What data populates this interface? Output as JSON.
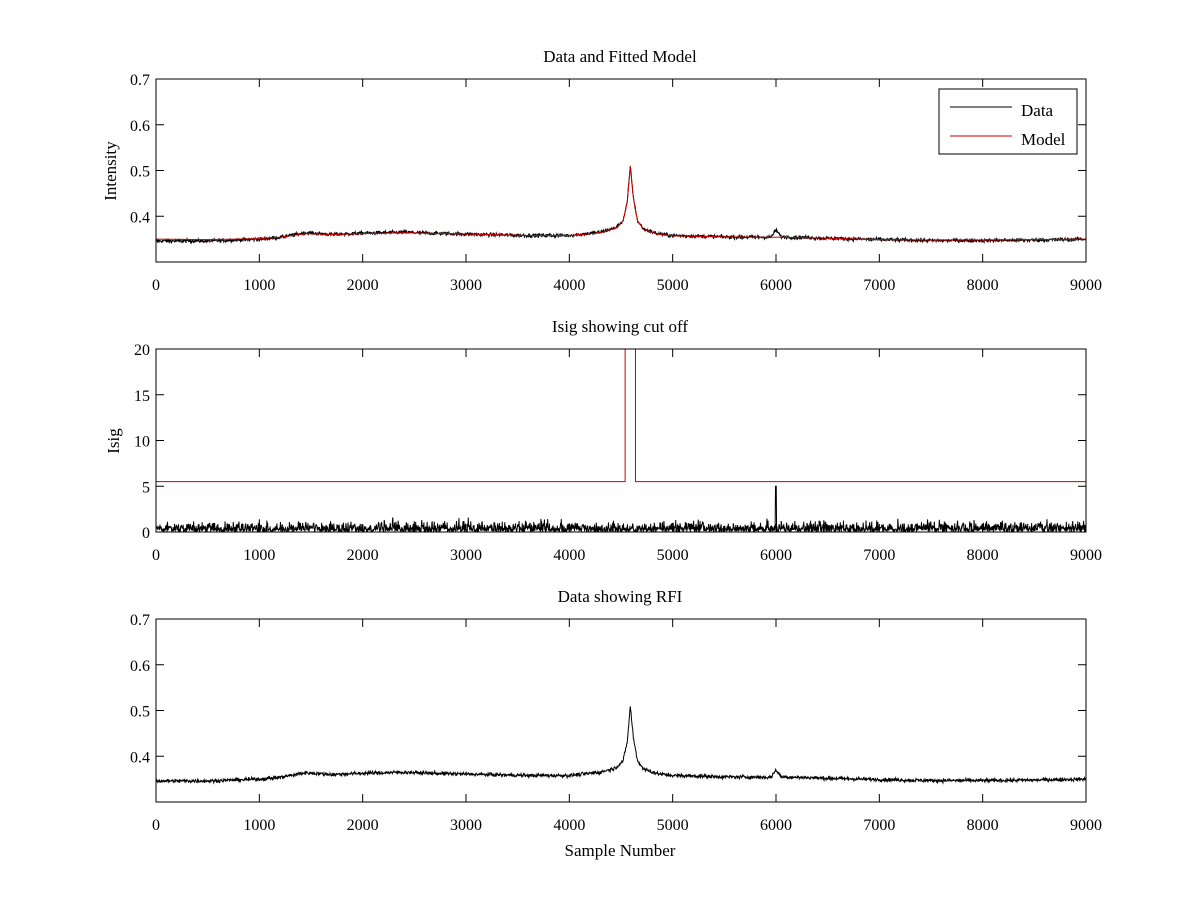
{
  "figure": {
    "background": "#ffffff"
  },
  "chart_data": [
    {
      "type": "line",
      "title": "Data and Fitted Model",
      "xlabel": "",
      "ylabel": "Intensity",
      "xlim": [
        0,
        9000
      ],
      "ylim": [
        0.3,
        0.7
      ],
      "xticks": [
        0,
        1000,
        2000,
        3000,
        4000,
        5000,
        6000,
        7000,
        8000,
        9000
      ],
      "yticks": [
        0.4,
        0.5,
        0.6,
        0.7
      ],
      "ytick_labels": [
        "0.4",
        "0.5",
        "0.6",
        "0.7"
      ],
      "legend": {
        "position": "top-right",
        "entries": [
          "Data",
          "Model"
        ]
      },
      "series": [
        {
          "name": "Data",
          "color": "#000000",
          "noisy": true,
          "noise_amplitude": 0.004,
          "x": [
            0,
            500,
            1000,
            1200,
            1450,
            1700,
            2000,
            2400,
            2800,
            3200,
            3600,
            4000,
            4300,
            4450,
            4520,
            4560,
            4590,
            4620,
            4660,
            4720,
            4850,
            5000,
            5500,
            5950,
            6000,
            6050,
            6500,
            7000,
            7500,
            8000,
            8500,
            9000
          ],
          "y": [
            0.346,
            0.346,
            0.35,
            0.354,
            0.364,
            0.36,
            0.363,
            0.365,
            0.362,
            0.36,
            0.358,
            0.358,
            0.365,
            0.375,
            0.39,
            0.43,
            0.51,
            0.44,
            0.39,
            0.372,
            0.362,
            0.358,
            0.355,
            0.354,
            0.37,
            0.355,
            0.352,
            0.349,
            0.347,
            0.347,
            0.348,
            0.35
          ]
        },
        {
          "name": "Model",
          "color": "#cc0000",
          "noisy": false,
          "x": [
            0,
            500,
            1000,
            1200,
            1450,
            1700,
            2000,
            2400,
            2800,
            3200,
            3600,
            4000,
            4300,
            4450,
            4520,
            4560,
            4590,
            4620,
            4660,
            4720,
            4850,
            5000,
            5500,
            5950,
            6000,
            6050,
            6500,
            7000,
            7500,
            8000,
            8500,
            9000
          ],
          "y": [
            0.35,
            0.349,
            0.351,
            0.354,
            0.362,
            0.36,
            0.362,
            0.364,
            0.362,
            0.36,
            0.358,
            0.358,
            0.364,
            0.374,
            0.39,
            0.43,
            0.51,
            0.44,
            0.39,
            0.371,
            0.361,
            0.357,
            0.355,
            0.354,
            0.354,
            0.354,
            0.352,
            0.349,
            0.348,
            0.348,
            0.349,
            0.35
          ]
        }
      ]
    },
    {
      "type": "line",
      "title": "Isig showing cut off",
      "xlabel": "",
      "ylabel": "Isig",
      "xlim": [
        0,
        9000
      ],
      "ylim": [
        0,
        20
      ],
      "xticks": [
        0,
        1000,
        2000,
        3000,
        4000,
        5000,
        6000,
        7000,
        8000,
        9000
      ],
      "yticks": [
        0,
        5,
        10,
        15,
        20
      ],
      "ytick_labels": [
        "0",
        "5",
        "10",
        "15",
        "20"
      ],
      "series": [
        {
          "name": "Isig",
          "color": "#000000",
          "noisy": true,
          "kind": "abs-noise",
          "typical_max": 3.3,
          "spikes": [
            {
              "x": 6000,
              "y": 5.0
            }
          ]
        },
        {
          "name": "Cut off",
          "color": "#cc0000",
          "noisy": false,
          "x": [
            0,
            4540,
            4540,
            4640,
            4640,
            9000
          ],
          "y": [
            5.5,
            5.5,
            20,
            20,
            5.5,
            5.5
          ]
        }
      ]
    },
    {
      "type": "line",
      "title": "Data showing RFI",
      "xlabel": "Sample Number",
      "ylabel": "",
      "xlim": [
        0,
        9000
      ],
      "ylim": [
        0.3,
        0.7
      ],
      "xticks": [
        0,
        1000,
        2000,
        3000,
        4000,
        5000,
        6000,
        7000,
        8000,
        9000
      ],
      "yticks": [
        0.4,
        0.5,
        0.6,
        0.7
      ],
      "ytick_labels": [
        "0.4",
        "0.5",
        "0.6",
        "0.7"
      ],
      "series": [
        {
          "name": "Data",
          "color": "#000000",
          "noisy": true,
          "noise_amplitude": 0.004,
          "x": [
            0,
            500,
            1000,
            1200,
            1450,
            1700,
            2000,
            2400,
            2800,
            3200,
            3600,
            4000,
            4300,
            4450,
            4520,
            4560,
            4590,
            4620,
            4660,
            4720,
            4850,
            5000,
            5500,
            5950,
            6000,
            6050,
            6500,
            7000,
            7500,
            8000,
            8500,
            9000
          ],
          "y": [
            0.346,
            0.346,
            0.35,
            0.354,
            0.364,
            0.36,
            0.363,
            0.365,
            0.362,
            0.36,
            0.358,
            0.358,
            0.365,
            0.375,
            0.39,
            0.43,
            0.51,
            0.44,
            0.39,
            0.372,
            0.362,
            0.358,
            0.355,
            0.354,
            0.37,
            0.355,
            0.352,
            0.349,
            0.347,
            0.347,
            0.348,
            0.35
          ]
        }
      ]
    }
  ]
}
